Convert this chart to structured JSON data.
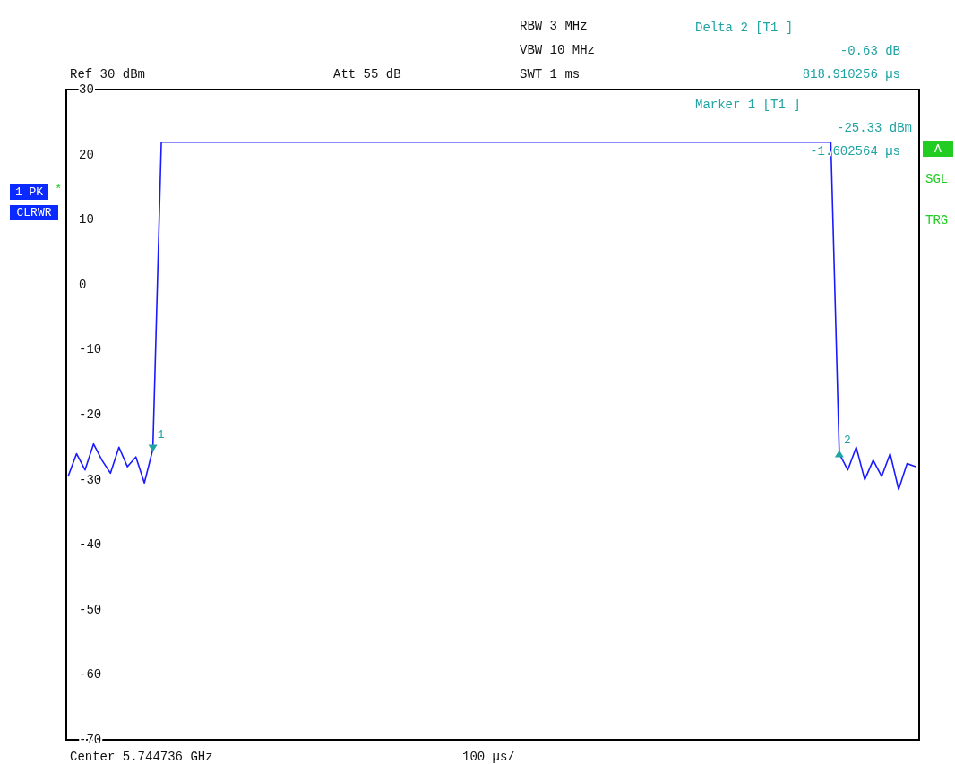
{
  "chart_data": {
    "type": "line",
    "ylim": [
      -70,
      30
    ],
    "yticks": [
      -70,
      -60,
      -50,
      -40,
      -30,
      -20,
      -10,
      0,
      10,
      20,
      30
    ],
    "tick_labels": "y",
    "grid": false,
    "line_style": "solid",
    "categories": [
      null,
      null,
      null,
      null,
      null,
      null,
      null,
      null,
      null,
      null,
      null,
      null,
      null,
      null,
      null,
      null,
      null,
      null,
      null,
      null,
      null,
      null,
      null,
      null,
      null,
      null,
      null,
      null,
      null,
      null,
      null,
      null,
      null,
      null,
      null,
      null,
      null,
      null,
      null,
      null,
      null,
      null,
      null,
      null,
      null,
      null,
      null,
      null,
      null,
      null,
      null,
      null,
      null,
      null,
      null,
      null,
      null,
      null,
      null,
      null,
      null,
      null,
      null,
      null,
      null,
      null,
      null,
      null,
      null,
      null,
      null,
      null,
      null,
      null,
      null,
      null,
      null,
      null,
      null,
      null,
      null,
      null,
      null,
      null,
      null,
      null,
      null,
      null,
      null,
      null,
      null,
      null,
      null,
      null,
      null,
      null,
      null,
      null,
      null,
      null,
      null
    ],
    "series": [
      {
        "color": "#1a1aff",
        "values": [
          -29.5,
          -26,
          -28.5,
          -24.5,
          -27,
          -29,
          -25,
          -28,
          -26.5,
          -30.5,
          -25.3,
          21.9,
          21.9,
          21.9,
          21.9,
          21.9,
          21.9,
          21.9,
          21.9,
          21.9,
          21.9,
          21.9,
          21.9,
          21.9,
          21.9,
          21.9,
          21.9,
          21.9,
          21.9,
          21.9,
          21.9,
          21.9,
          21.9,
          21.9,
          21.9,
          21.9,
          21.9,
          21.9,
          21.9,
          21.9,
          21.9,
          21.9,
          21.9,
          21.9,
          21.9,
          21.9,
          21.9,
          21.9,
          21.9,
          21.9,
          21.9,
          21.9,
          21.9,
          21.9,
          21.9,
          21.9,
          21.9,
          21.9,
          21.9,
          21.9,
          21.9,
          21.9,
          21.9,
          21.9,
          21.9,
          21.9,
          21.9,
          21.9,
          21.9,
          21.9,
          21.9,
          21.9,
          21.9,
          21.9,
          21.9,
          21.9,
          21.9,
          21.9,
          21.9,
          21.9,
          21.9,
          21.9,
          21.9,
          21.9,
          21.9,
          21.9,
          21.9,
          21.9,
          21.9,
          21.9,
          21.9,
          -26,
          -28.5,
          -25,
          -30,
          -27,
          -29.5,
          -26,
          -31.5,
          -27.5,
          -28
        ]
      }
    ],
    "annotations": [
      "RBW 3 MHz",
      "VBW 10 MHz",
      "SWT 1 ms",
      "Ref 30 dBm",
      "Att 55 dB",
      "Delta 2 [T1 ]",
      "-0.63 dB",
      "818.910256 µs",
      "Marker 1 [T1 ]",
      "-25.33 dBm",
      "-1.602564 µs",
      "Center 5.744736 GHz",
      "100 µs/",
      "1 PK",
      "*",
      "CLRWR",
      "A",
      "SGL",
      "TRG",
      "1",
      "2"
    ]
  }
}
